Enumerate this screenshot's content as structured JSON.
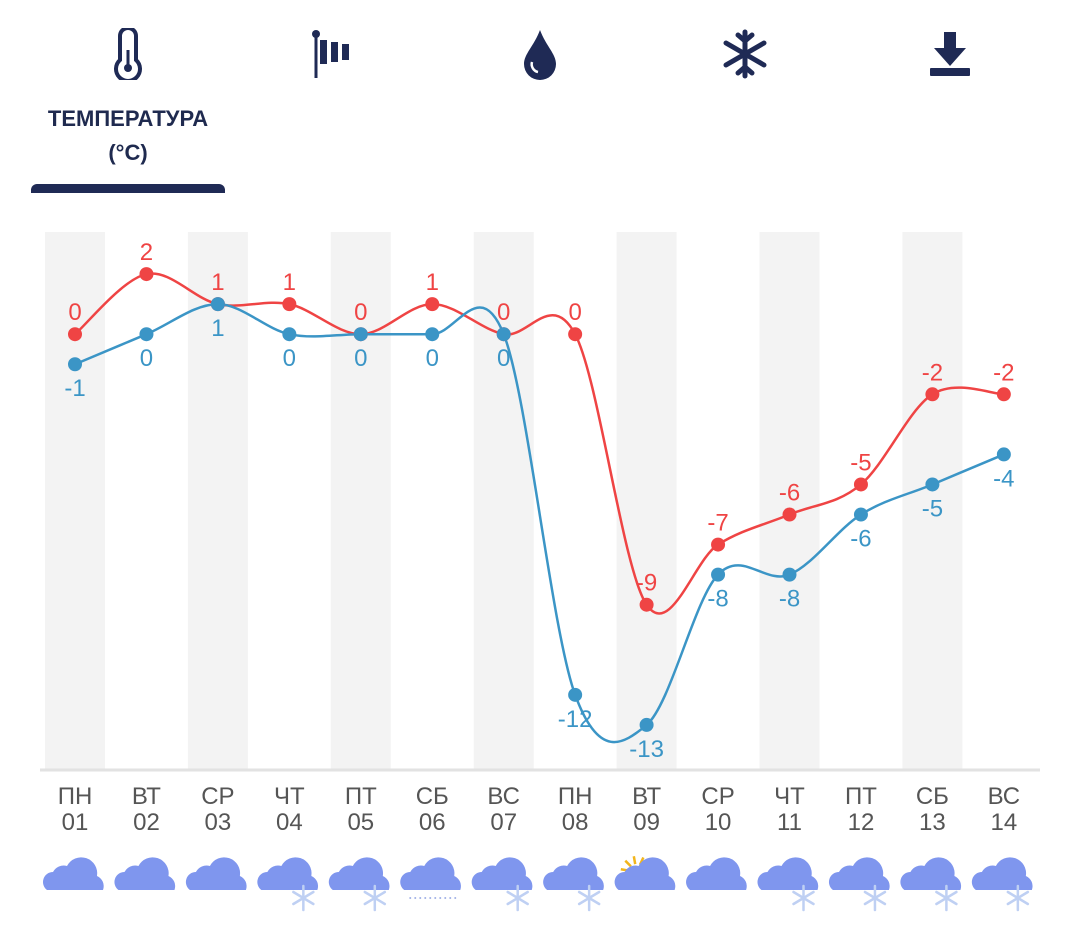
{
  "tabs": [
    {
      "icon": "thermometer-icon",
      "label": "ТЕМПЕРАТУРА",
      "unit": "(°C)",
      "active": true
    },
    {
      "icon": "windsock-icon",
      "label": ""
    },
    {
      "icon": "water-drop-icon",
      "label": ""
    },
    {
      "icon": "snowflake-icon",
      "label": ""
    },
    {
      "icon": "download-icon",
      "label": ""
    }
  ],
  "colors": {
    "max": "#ef4444",
    "min": "#3b95c6",
    "navy": "#1f2a55",
    "band": "#f3f3f3",
    "axis_text": "#555555"
  },
  "chart_data": {
    "type": "line",
    "title": "ТЕМПЕРАТУРА (°C)",
    "categories": [
      {
        "day": "ПН",
        "date": "01",
        "weather": "cloudy"
      },
      {
        "day": "ВТ",
        "date": "02",
        "weather": "cloudy"
      },
      {
        "day": "СР",
        "date": "03",
        "weather": "cloudy"
      },
      {
        "day": "ЧТ",
        "date": "04",
        "weather": "snow"
      },
      {
        "day": "ПТ",
        "date": "05",
        "weather": "snow"
      },
      {
        "day": "СБ",
        "date": "06",
        "weather": "drizzle"
      },
      {
        "day": "ВС",
        "date": "07",
        "weather": "snow"
      },
      {
        "day": "ПН",
        "date": "08",
        "weather": "snow"
      },
      {
        "day": "ВТ",
        "date": "09",
        "weather": "partly-cloudy"
      },
      {
        "day": "СР",
        "date": "10",
        "weather": "cloudy"
      },
      {
        "day": "ЧТ",
        "date": "11",
        "weather": "snow"
      },
      {
        "day": "ПТ",
        "date": "12",
        "weather": "snow"
      },
      {
        "day": "СБ",
        "date": "13",
        "weather": "snow"
      },
      {
        "day": "ВС",
        "date": "14",
        "weather": "snow"
      }
    ],
    "series": [
      {
        "name": "max",
        "values": [
          0,
          2,
          1,
          1,
          0,
          1,
          0,
          0,
          -9,
          -7,
          -6,
          -5,
          -2,
          -2
        ]
      },
      {
        "name": "min",
        "values": [
          -1,
          0,
          1,
          0,
          0,
          0,
          0,
          -12,
          -13,
          -8,
          -8,
          -6,
          -5,
          -4
        ]
      }
    ],
    "ylim": [
      -14.5,
      3.4
    ],
    "xlabel": "",
    "ylabel": "",
    "grid": false,
    "legend": "none"
  }
}
